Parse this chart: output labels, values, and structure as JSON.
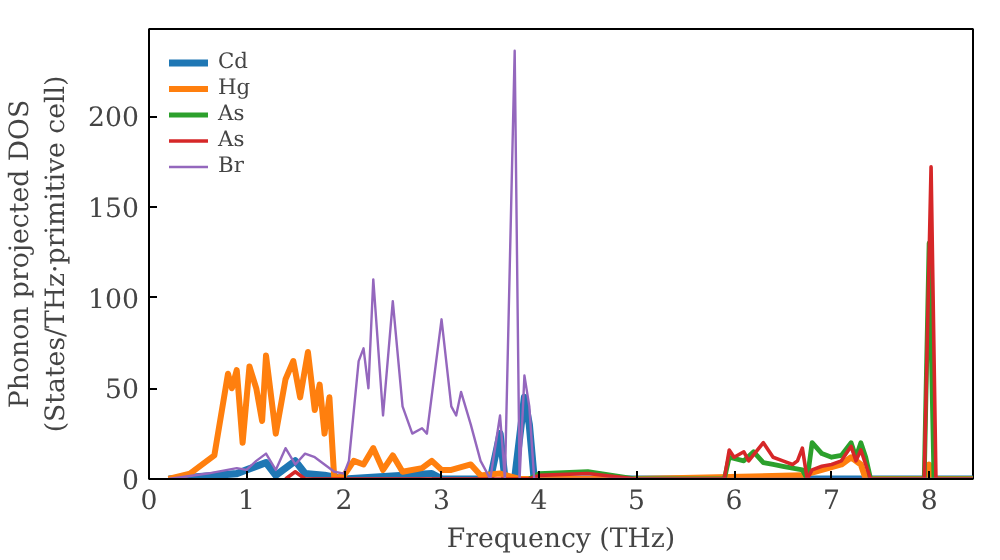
{
  "chart_data": {
    "type": "line",
    "xlabel": "Frequency (THz)",
    "ylabel": "Phonon projected DOS\n(States/THz·primitive cell)",
    "xlim": [
      0,
      8.45
    ],
    "ylim": [
      0,
      248
    ],
    "xticks": [
      0,
      1,
      2,
      3,
      4,
      5,
      6,
      7,
      8
    ],
    "yticks": [
      0,
      50,
      100,
      150,
      200
    ],
    "grid": false,
    "legend": "top left",
    "line_style": "solid",
    "marker": "none",
    "series": [
      {
        "name": "Cd",
        "color": "#1f77b4",
        "x": [
          0.2,
          0.9,
          1.0,
          1.2,
          1.3,
          1.5,
          1.6,
          1.8,
          2.0,
          2.9,
          3.0,
          3.5,
          3.6,
          3.65,
          3.75,
          3.85,
          3.9,
          3.95,
          4.5,
          8.45
        ],
        "values": [
          0,
          3,
          5,
          9,
          2,
          10,
          3,
          2,
          0,
          3,
          0,
          0,
          25,
          0,
          0,
          45,
          30,
          0,
          0,
          0
        ]
      },
      {
        "name": "Hg",
        "color": "#ff7f0e",
        "x": [
          0.2,
          0.42,
          0.67,
          0.81,
          0.85,
          0.9,
          0.96,
          1.03,
          1.1,
          1.16,
          1.2,
          1.3,
          1.4,
          1.48,
          1.55,
          1.63,
          1.7,
          1.75,
          1.8,
          1.85,
          1.9,
          2.0,
          2.1,
          2.2,
          2.3,
          2.4,
          2.5,
          2.6,
          2.8,
          2.9,
          3.0,
          3.1,
          3.3,
          3.4,
          3.6,
          3.8,
          5.0,
          6.7,
          6.9,
          7.1,
          7.2,
          7.3,
          7.35,
          7.95,
          8.0,
          8.05,
          8.45
        ],
        "values": [
          0,
          3,
          13,
          58,
          50,
          60,
          20,
          62,
          50,
          32,
          68,
          25,
          55,
          65,
          45,
          70,
          38,
          52,
          25,
          45,
          0,
          2,
          10,
          8,
          17,
          5,
          13,
          4,
          6,
          10,
          5,
          5,
          8,
          2,
          3,
          0,
          0,
          2,
          5,
          8,
          12,
          8,
          0,
          0,
          8,
          0,
          0
        ]
      },
      {
        "name": "As",
        "color": "#2ca02c",
        "x": [
          3.9,
          4.0,
          4.5,
          5.0,
          5.9,
          5.95,
          6.1,
          6.2,
          6.3,
          6.4,
          6.5,
          6.6,
          6.7,
          6.75,
          6.8,
          6.9,
          7.0,
          7.1,
          7.2,
          7.25,
          7.3,
          7.35,
          7.4,
          7.95,
          8.0,
          8.05,
          8.45
        ],
        "values": [
          0,
          3,
          4,
          0,
          0,
          12,
          10,
          15,
          9,
          8,
          7,
          6,
          5,
          0,
          20,
          14,
          12,
          13,
          20,
          12,
          20,
          12,
          0,
          0,
          130,
          0,
          0
        ]
      },
      {
        "name": "As",
        "color": "#d62728",
        "x": [
          1.4,
          1.5,
          1.6,
          3.9,
          4.0,
          4.5,
          5.0,
          5.9,
          5.95,
          6.0,
          6.1,
          6.15,
          6.3,
          6.4,
          6.5,
          6.6,
          6.65,
          6.7,
          6.75,
          6.8,
          6.9,
          7.0,
          7.1,
          7.2,
          7.25,
          7.3,
          7.4,
          7.95,
          8.02,
          8.07,
          8.45
        ],
        "values": [
          0,
          4,
          0,
          0,
          2,
          3,
          0,
          0,
          16,
          12,
          15,
          10,
          20,
          12,
          10,
          8,
          10,
          17,
          0,
          5,
          7,
          8,
          10,
          18,
          10,
          16,
          0,
          0,
          172,
          0,
          0
        ]
      },
      {
        "name": "Br",
        "color": "#9467bd",
        "x": [
          0.2,
          0.6,
          0.9,
          1.0,
          1.1,
          1.2,
          1.3,
          1.4,
          1.5,
          1.6,
          1.7,
          1.8,
          1.9,
          2.0,
          2.05,
          2.15,
          2.2,
          2.25,
          2.3,
          2.4,
          2.5,
          2.6,
          2.7,
          2.8,
          2.85,
          3.0,
          3.1,
          3.15,
          3.2,
          3.3,
          3.4,
          3.5,
          3.6,
          3.65,
          3.75,
          3.8,
          3.85,
          3.9,
          3.95,
          4.5,
          8.45
        ],
        "values": [
          0,
          3,
          6,
          5,
          10,
          14,
          5,
          17,
          8,
          14,
          12,
          8,
          4,
          3,
          10,
          65,
          72,
          50,
          110,
          35,
          98,
          40,
          25,
          28,
          25,
          88,
          40,
          35,
          48,
          30,
          10,
          0,
          35,
          0,
          236,
          0,
          57,
          40,
          0,
          0,
          0
        ]
      }
    ]
  }
}
